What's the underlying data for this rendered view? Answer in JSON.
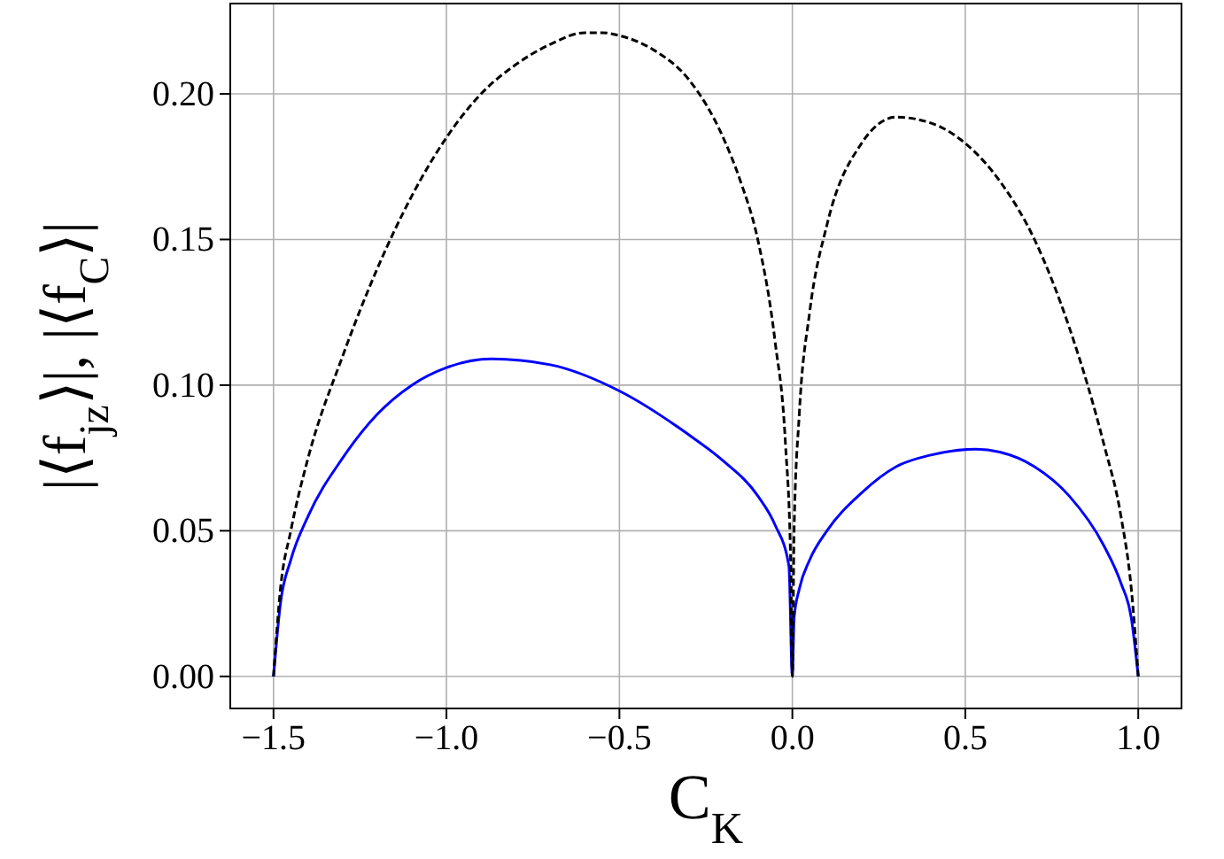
{
  "chart_data": {
    "type": "line",
    "xlabel": "C$_{K}$",
    "ylabel": "|⟨f$_{jz}$⟩|, |⟨f$_{C}$⟩|",
    "xlim": [
      -1.625,
      1.125
    ],
    "xticks": [
      {
        "value": -1.5,
        "label": "−1.5"
      },
      {
        "value": -1.0,
        "label": "−1.0"
      },
      {
        "value": -0.5,
        "label": "−0.5"
      },
      {
        "value": 0,
        "label": "0.0"
      },
      {
        "value": 0.5,
        "label": "0.5"
      },
      {
        "value": 1.0,
        "label": "1.0"
      }
    ],
    "ylim": [
      -0.011,
      0.231
    ],
    "yticks": [
      {
        "value": 0,
        "label": "0.00"
      },
      {
        "value": 0.05,
        "label": "0.05"
      },
      {
        "value": 0.1,
        "label": "0.10"
      },
      {
        "value": 0.15,
        "label": "0.15"
      },
      {
        "value": 0.2,
        "label": "0.20"
      }
    ],
    "grid": true,
    "marker": "none",
    "series": [
      {
        "color": "#000000",
        "line_style": "dashed",
        "x": [
          -1.5,
          -1.48,
          -1.45,
          -1.4,
          -1.3,
          -1.2,
          -1.1,
          -1.0,
          -0.9,
          -0.8,
          -0.7,
          -0.6,
          -0.55,
          -0.5,
          -0.4,
          -0.3,
          -0.2,
          -0.15,
          -0.1,
          -0.05,
          -0.02,
          -0.005,
          0,
          0.005,
          0.02,
          0.05,
          0.1,
          0.2,
          0.3,
          0.4,
          0.5,
          0.6,
          0.7,
          0.8,
          0.9,
          0.95,
          0.98,
          1.0
        ],
        "values": [
          0,
          0.03,
          0.05,
          0.075,
          0.11,
          0.14,
          0.165,
          0.185,
          0.2,
          0.21,
          0.217,
          0.221,
          0.221,
          0.22,
          0.215,
          0.205,
          0.185,
          0.17,
          0.15,
          0.115,
          0.08,
          0.04,
          0,
          0.05,
          0.09,
          0.125,
          0.155,
          0.183,
          0.192,
          0.19,
          0.183,
          0.17,
          0.15,
          0.12,
          0.08,
          0.055,
          0.03,
          0
        ]
      },
      {
        "color": "#0000ff",
        "line_style": "solid",
        "x": [
          -1.5,
          -1.48,
          -1.45,
          -1.4,
          -1.3,
          -1.2,
          -1.1,
          -1.0,
          -0.87,
          -0.7,
          -0.5,
          -0.3,
          -0.2,
          -0.1,
          -0.05,
          -0.01,
          0,
          0.005,
          0.02,
          0.05,
          0.1,
          0.2,
          0.3,
          0.4,
          0.53,
          0.6,
          0.7,
          0.8,
          0.9,
          0.95,
          0.98,
          1.0
        ],
        "values": [
          0,
          0.025,
          0.04,
          0.055,
          0.075,
          0.09,
          0.1,
          0.106,
          0.109,
          0.107,
          0.098,
          0.083,
          0.074,
          0.062,
          0.052,
          0.038,
          0,
          0.02,
          0.03,
          0.04,
          0.05,
          0.063,
          0.072,
          0.076,
          0.078,
          0.077,
          0.072,
          0.062,
          0.045,
          0.032,
          0.02,
          0
        ]
      }
    ]
  }
}
